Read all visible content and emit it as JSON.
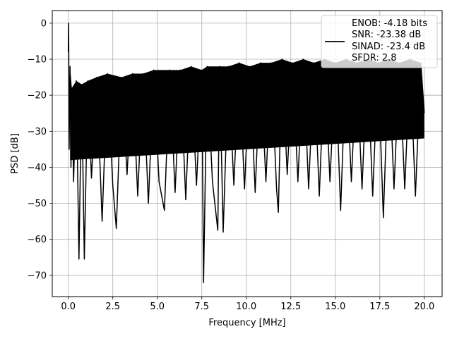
{
  "chart_data": {
    "type": "line",
    "xlabel": "Frequency [MHz]",
    "ylabel": "PSD [dB]",
    "xlim": [
      -0.9,
      21.0
    ],
    "ylim": [
      -75.9,
      3.5
    ],
    "xticks": [
      0.0,
      2.5,
      5.0,
      7.5,
      10.0,
      12.5,
      15.0,
      17.5,
      20.0
    ],
    "xtick_labels": [
      "0.0",
      "2.5",
      "5.0",
      "7.5",
      "10.0",
      "12.5",
      "15.0",
      "17.5",
      "20.0"
    ],
    "yticks": [
      0,
      -10,
      -20,
      -30,
      -40,
      -50,
      -60,
      -70
    ],
    "ytick_labels": [
      "0",
      "−10",
      "−20",
      "−30",
      "−40",
      "−50",
      "−60",
      "−70"
    ],
    "grid": true,
    "legend_position": "top-right",
    "legend_lines": [
      "ENOB: -4.18 bits",
      "SNR: -23.38 dB",
      "SINAD: -23.4 dB",
      "SFDR: 2.8"
    ],
    "line_color": "#000000",
    "series": [
      {
        "x": [
          0.0,
          0.02,
          0.05,
          0.1,
          0.15,
          0.2,
          0.3,
          0.45,
          0.6,
          0.75,
          0.9,
          1.1,
          1.3,
          1.6,
          1.9,
          2.2,
          2.5,
          2.7,
          3.0,
          3.3,
          3.6,
          3.9,
          4.2,
          4.5,
          4.8,
          5.1,
          5.4,
          5.7,
          6.0,
          6.3,
          6.6,
          6.9,
          7.2,
          7.5,
          7.6,
          7.8,
          8.1,
          8.4,
          8.5,
          8.7,
          9.0,
          9.3,
          9.6,
          9.9,
          10.2,
          10.5,
          10.8,
          11.1,
          11.4,
          11.7,
          11.8,
          12.0,
          12.3,
          12.6,
          12.9,
          13.2,
          13.5,
          13.8,
          14.1,
          14.4,
          14.7,
          15.0,
          15.3,
          15.6,
          15.9,
          16.2,
          16.5,
          16.8,
          17.1,
          17.4,
          17.7,
          18.0,
          18.3,
          18.6,
          18.9,
          19.2,
          19.5,
          19.8,
          20.0
        ],
        "y": [
          -8,
          0,
          -35,
          -12,
          -40,
          -18,
          -44,
          -16,
          -65.5,
          -17,
          -65.5,
          -16,
          -43,
          -15,
          -55,
          -14,
          -45,
          -57,
          -15,
          -42,
          -14,
          -48,
          -14,
          -50,
          -13,
          -44,
          -52,
          -13,
          -47,
          -13,
          -49,
          -12,
          -45,
          -13,
          -72,
          -12,
          -44,
          -57.5,
          -12,
          -58,
          -12,
          -45,
          -11,
          -46,
          -12,
          -47,
          -11,
          -44,
          -11,
          -46,
          -52.5,
          -10,
          -42,
          -11,
          -44,
          -10,
          -46,
          -11,
          -48,
          -10,
          -44,
          -11,
          -52,
          -10,
          -44,
          -11,
          -46,
          -10,
          -48,
          -11,
          -54,
          -10,
          -46,
          -11,
          -46,
          -10,
          -48,
          -11,
          -25
        ]
      }
    ]
  }
}
